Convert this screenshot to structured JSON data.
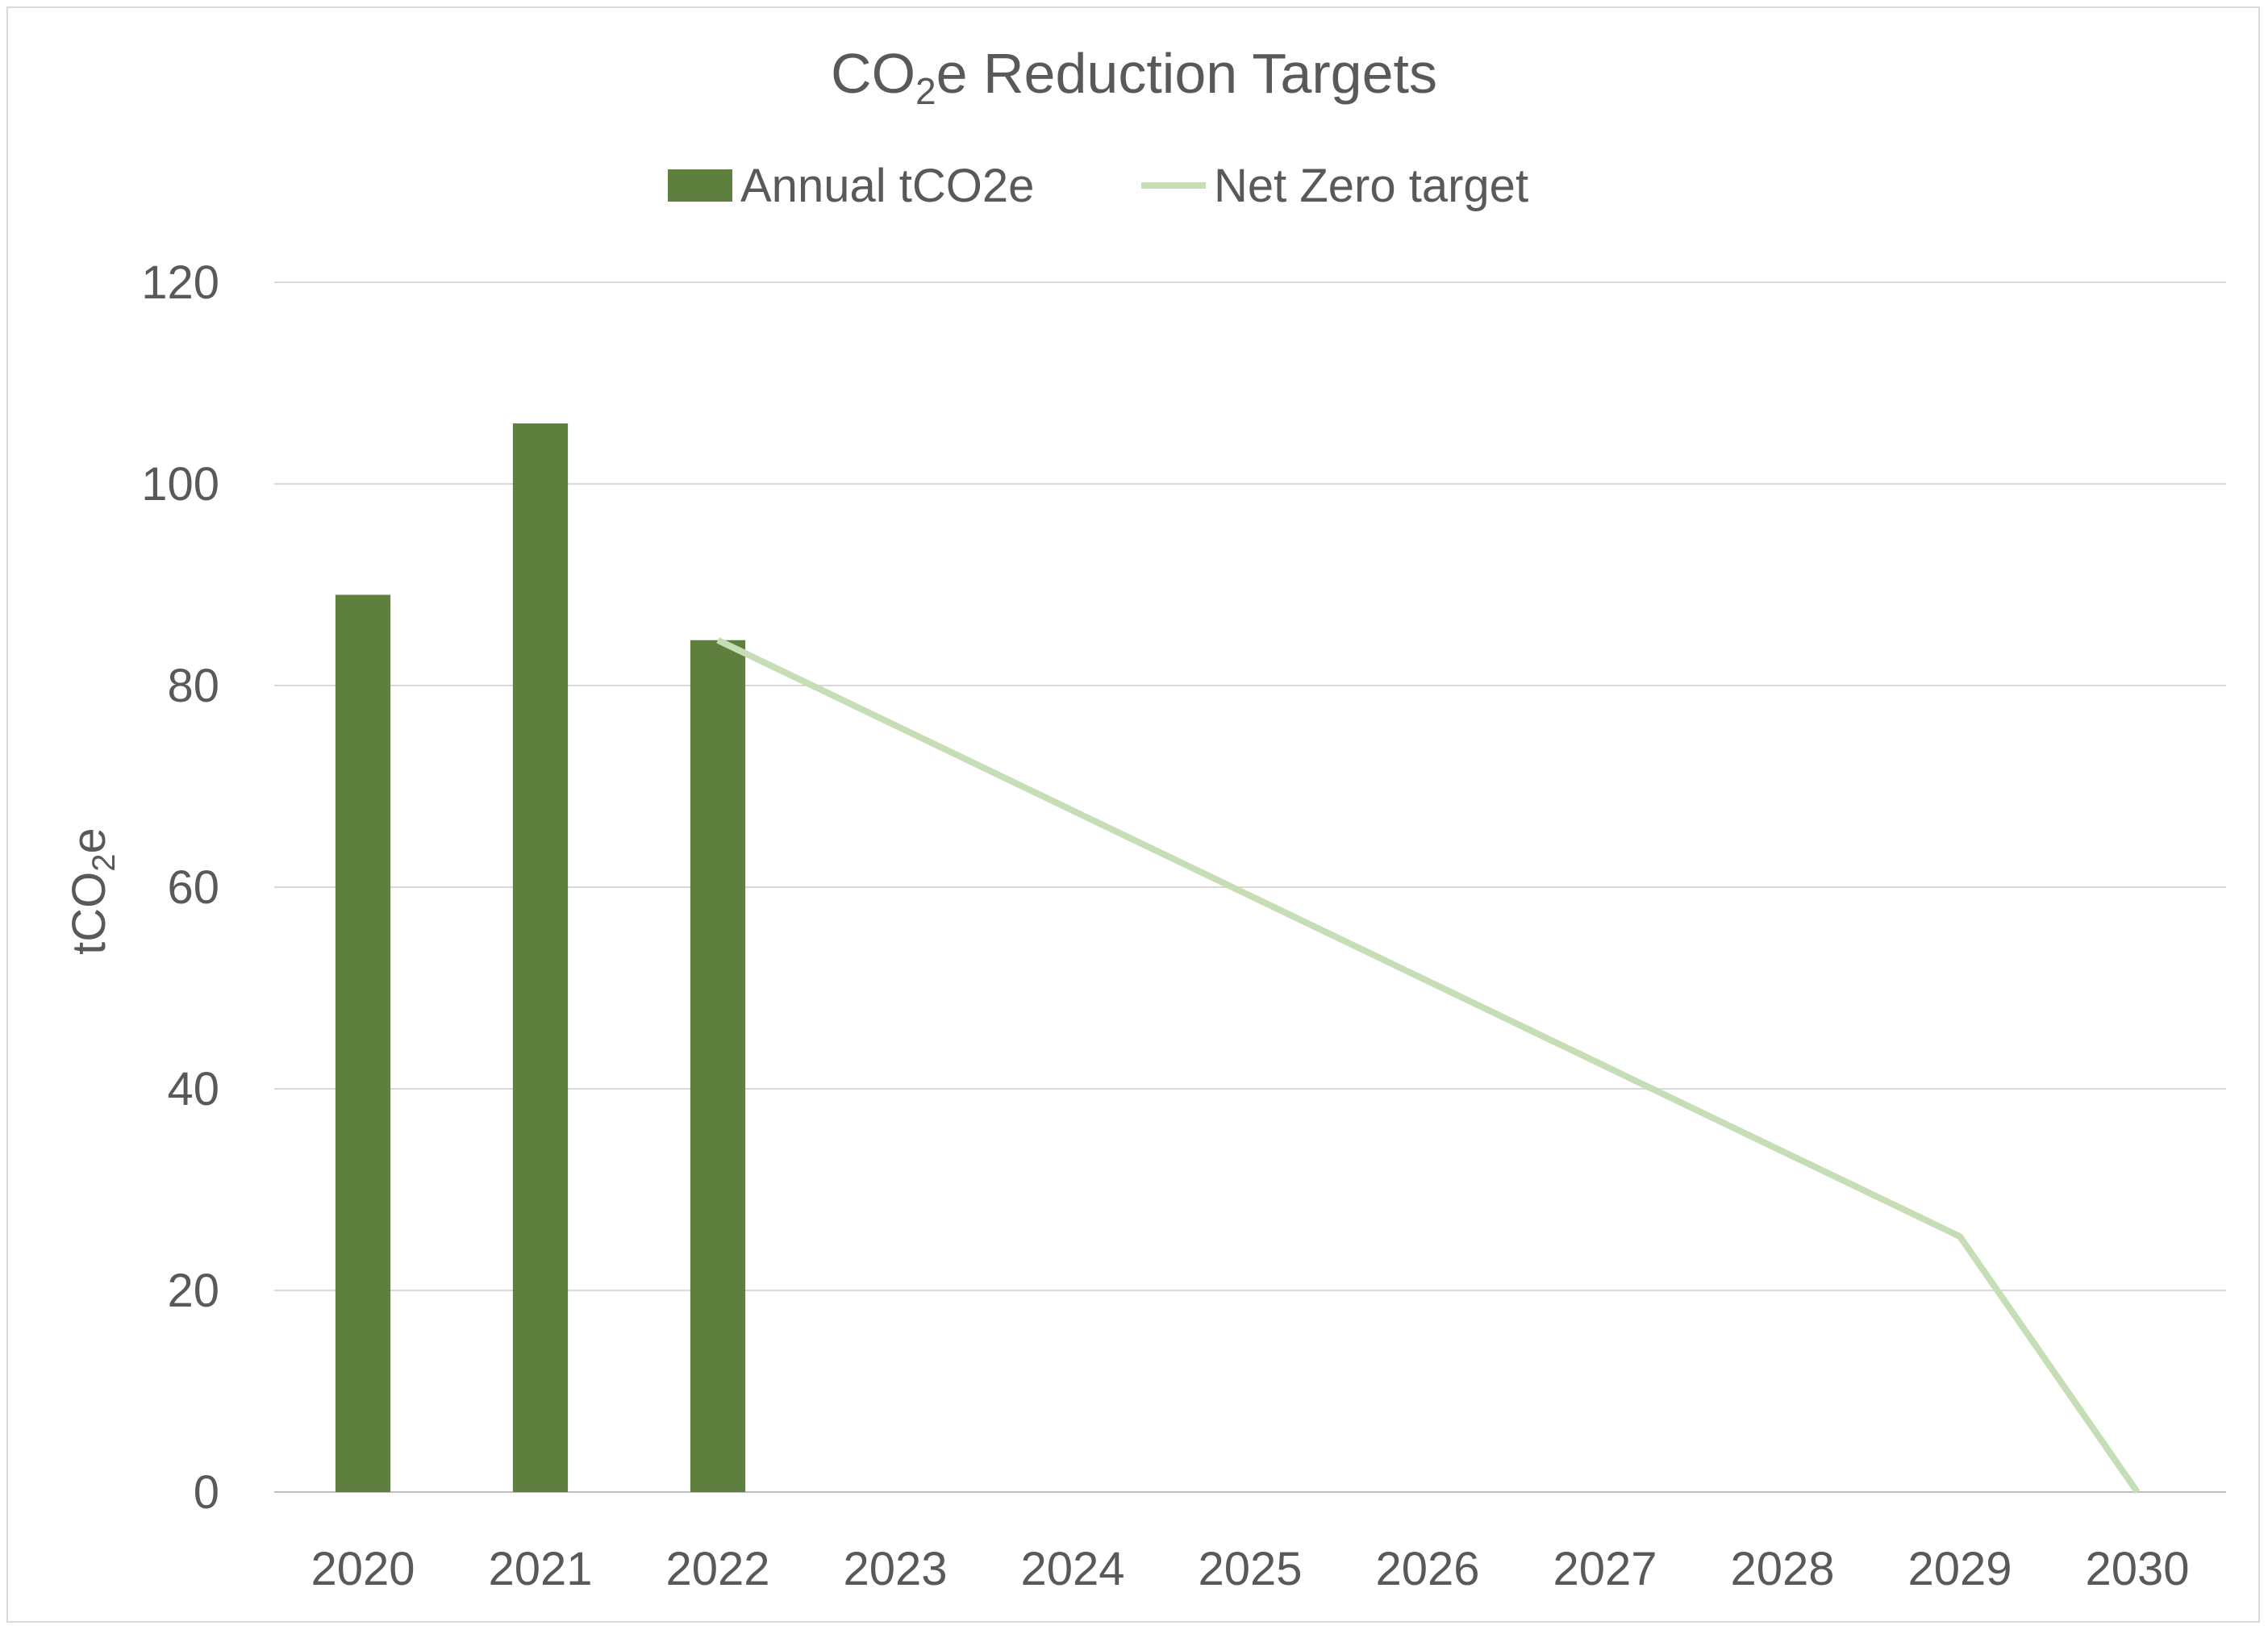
{
  "chart_data": {
    "type": "bar",
    "title": {
      "main": "CO",
      "sub": "2",
      "rest": "e Reduction Targets"
    },
    "ylabel": {
      "main": "tCO",
      "sub": "2",
      "rest": "e"
    },
    "xlabel": "",
    "categories": [
      "2020",
      "2021",
      "2022",
      "2023",
      "2024",
      "2025",
      "2026",
      "2027",
      "2028",
      "2029",
      "2030"
    ],
    "ylim": [
      0,
      120
    ],
    "yticks": [
      0,
      20,
      40,
      60,
      80,
      100,
      120
    ],
    "grid": true,
    "legend_position": "top",
    "series": [
      {
        "name": "Annual tCO2e",
        "kind": "bar",
        "color": "#5f7f3f",
        "values": [
          89,
          106,
          84.5,
          null,
          null,
          null,
          null,
          null,
          null,
          null,
          null
        ]
      },
      {
        "name": "Net Zero target",
        "kind": "line",
        "color": "#c5deb5",
        "values": [
          null,
          null,
          84.5,
          76.05,
          67.6,
          59.15,
          50.7,
          42.25,
          33.8,
          25.35,
          0
        ]
      }
    ]
  }
}
